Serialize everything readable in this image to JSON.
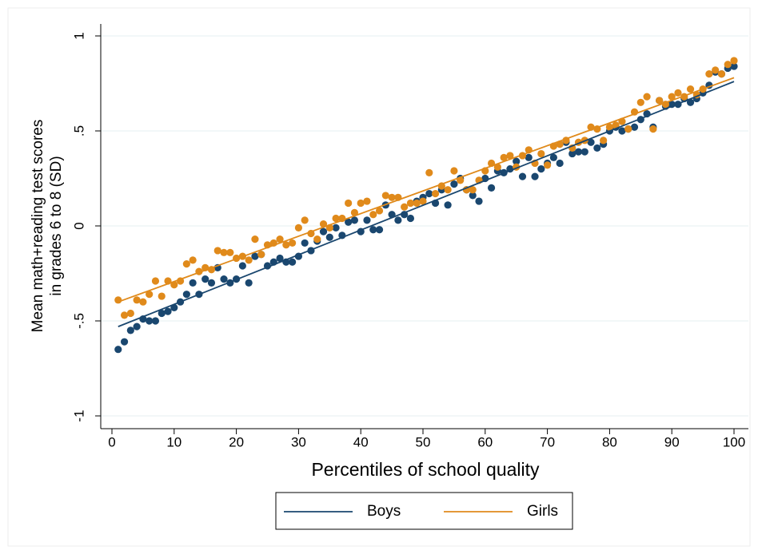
{
  "chart_data": {
    "type": "scatter",
    "xlabel": "Percentiles of school quality",
    "ylabel": [
      "Mean math+reading test scores",
      "in grades 6 to 8 (SD)"
    ],
    "xlim": [
      0,
      100
    ],
    "ylim": [
      -1,
      1
    ],
    "xticks": [
      0,
      10,
      20,
      30,
      40,
      50,
      60,
      70,
      80,
      90,
      100
    ],
    "yticks": [
      -1,
      {
        "value": -0.5,
        "label": "-.5"
      },
      0,
      {
        "value": 0.5,
        "label": ".5"
      },
      1
    ],
    "grid": true,
    "legend": "bottom",
    "x": [
      1,
      2,
      3,
      4,
      5,
      6,
      7,
      8,
      9,
      10,
      11,
      12,
      13,
      14,
      15,
      16,
      17,
      18,
      19,
      20,
      21,
      22,
      23,
      24,
      25,
      26,
      27,
      28,
      29,
      30,
      31,
      32,
      33,
      34,
      35,
      36,
      37,
      38,
      39,
      40,
      41,
      42,
      43,
      44,
      45,
      46,
      47,
      48,
      49,
      50,
      51,
      52,
      53,
      54,
      55,
      56,
      57,
      58,
      59,
      60,
      61,
      62,
      63,
      64,
      65,
      66,
      67,
      68,
      69,
      70,
      71,
      72,
      73,
      74,
      75,
      76,
      77,
      78,
      79,
      80,
      81,
      82,
      83,
      84,
      85,
      86,
      87,
      88,
      89,
      90,
      91,
      92,
      93,
      94,
      95,
      96,
      97,
      98,
      99,
      100
    ],
    "series": [
      {
        "name": "Boys",
        "color": "#1a476f",
        "values": [
          -0.65,
          -0.61,
          -0.55,
          -0.53,
          -0.49,
          -0.5,
          -0.5,
          -0.46,
          -0.45,
          -0.43,
          -0.4,
          -0.36,
          -0.3,
          -0.36,
          -0.28,
          -0.3,
          -0.22,
          -0.28,
          -0.3,
          -0.28,
          -0.21,
          -0.3,
          -0.16,
          -0.15,
          -0.21,
          -0.19,
          -0.17,
          -0.19,
          -0.19,
          -0.16,
          -0.09,
          -0.13,
          -0.08,
          -0.03,
          -0.06,
          -0.01,
          -0.05,
          0.02,
          0.03,
          -0.03,
          0.03,
          -0.02,
          -0.02,
          0.11,
          0.06,
          0.03,
          0.06,
          0.04,
          0.13,
          0.15,
          0.17,
          0.12,
          0.19,
          0.11,
          0.22,
          0.25,
          0.19,
          0.16,
          0.13,
          0.25,
          0.2,
          0.29,
          0.28,
          0.3,
          0.34,
          0.26,
          0.36,
          0.26,
          0.3,
          0.33,
          0.36,
          0.33,
          0.44,
          0.38,
          0.39,
          0.39,
          0.44,
          0.41,
          0.43,
          0.5,
          0.52,
          0.5,
          0.51,
          0.52,
          0.56,
          0.59,
          0.52,
          0.66,
          0.63,
          0.64,
          0.64,
          0.67,
          0.65,
          0.67,
          0.7,
          0.74,
          0.81,
          0.8,
          0.83,
          0.84
        ],
        "fit": {
          "x": [
            1,
            100
          ],
          "y": [
            -0.53,
            0.76
          ]
        }
      },
      {
        "name": "Girls",
        "color": "#e08a1b",
        "values": [
          -0.39,
          -0.47,
          -0.46,
          -0.39,
          -0.4,
          -0.36,
          -0.29,
          -0.37,
          -0.29,
          -0.31,
          -0.29,
          -0.2,
          -0.18,
          -0.24,
          -0.22,
          -0.23,
          -0.13,
          -0.14,
          -0.14,
          -0.17,
          -0.16,
          -0.18,
          -0.07,
          -0.15,
          -0.1,
          -0.09,
          -0.07,
          -0.1,
          -0.09,
          -0.01,
          0.03,
          -0.04,
          -0.07,
          0.01,
          -0.01,
          0.04,
          0.04,
          0.12,
          0.07,
          0.12,
          0.13,
          0.06,
          0.08,
          0.16,
          0.15,
          0.15,
          0.1,
          0.12,
          0.12,
          0.13,
          0.28,
          0.17,
          0.21,
          0.19,
          0.29,
          0.24,
          0.19,
          0.19,
          0.24,
          0.29,
          0.33,
          0.31,
          0.36,
          0.37,
          0.31,
          0.37,
          0.4,
          0.33,
          0.38,
          0.32,
          0.42,
          0.43,
          0.45,
          0.41,
          0.44,
          0.45,
          0.52,
          0.51,
          0.45,
          0.52,
          0.53,
          0.55,
          0.51,
          0.6,
          0.65,
          0.68,
          0.51,
          0.66,
          0.64,
          0.68,
          0.7,
          0.68,
          0.72,
          0.69,
          0.72,
          0.8,
          0.82,
          0.8,
          0.85,
          0.87
        ],
        "fit": {
          "x": [
            1,
            100
          ],
          "y": [
            -0.4,
            0.78
          ]
        }
      }
    ]
  }
}
